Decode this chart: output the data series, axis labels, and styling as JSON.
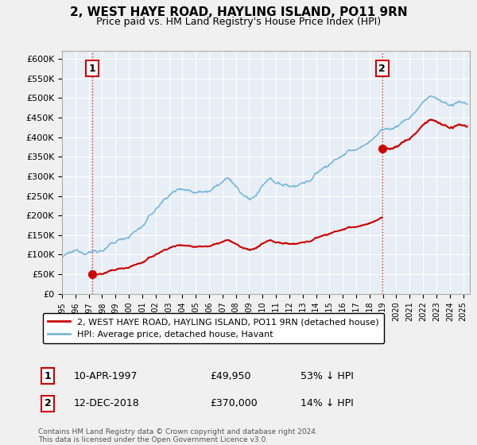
{
  "title": "2, WEST HAYE ROAD, HAYLING ISLAND, PO11 9RN",
  "subtitle": "Price paid vs. HM Land Registry's House Price Index (HPI)",
  "sale1_date_num": 1997.278,
  "sale1_price": 49950,
  "sale1_label": "1",
  "sale1_date_str": "10-APR-1997",
  "sale1_pct": "53% ↓ HPI",
  "sale2_date_num": 2018.95,
  "sale2_price": 370000,
  "sale2_label": "2",
  "sale2_date_str": "12-DEC-2018",
  "sale2_pct": "14% ↓ HPI",
  "ylim": [
    0,
    620000
  ],
  "xlim_start": 1995.0,
  "xlim_end": 2025.5,
  "hpi_color": "#7ab8d9",
  "sale_color": "#cc0000",
  "bg_color": "#e8eef5",
  "grid_color": "#ffffff",
  "fig_bg": "#f0f0f0",
  "legend_label1": "2, WEST HAYE ROAD, HAYLING ISLAND, PO11 9RN (detached house)",
  "legend_label2": "HPI: Average price, detached house, Havant",
  "footer": "Contains HM Land Registry data © Crown copyright and database right 2024.\nThis data is licensed under the Open Government Licence v3.0.",
  "yticks": [
    0,
    50000,
    100000,
    150000,
    200000,
    250000,
    300000,
    350000,
    400000,
    450000,
    500000,
    550000,
    600000
  ],
  "ytick_labels": [
    "£0",
    "£50K",
    "£100K",
    "£150K",
    "£200K",
    "£250K",
    "£300K",
    "£350K",
    "£400K",
    "£450K",
    "£500K",
    "£550K",
    "£600K"
  ]
}
